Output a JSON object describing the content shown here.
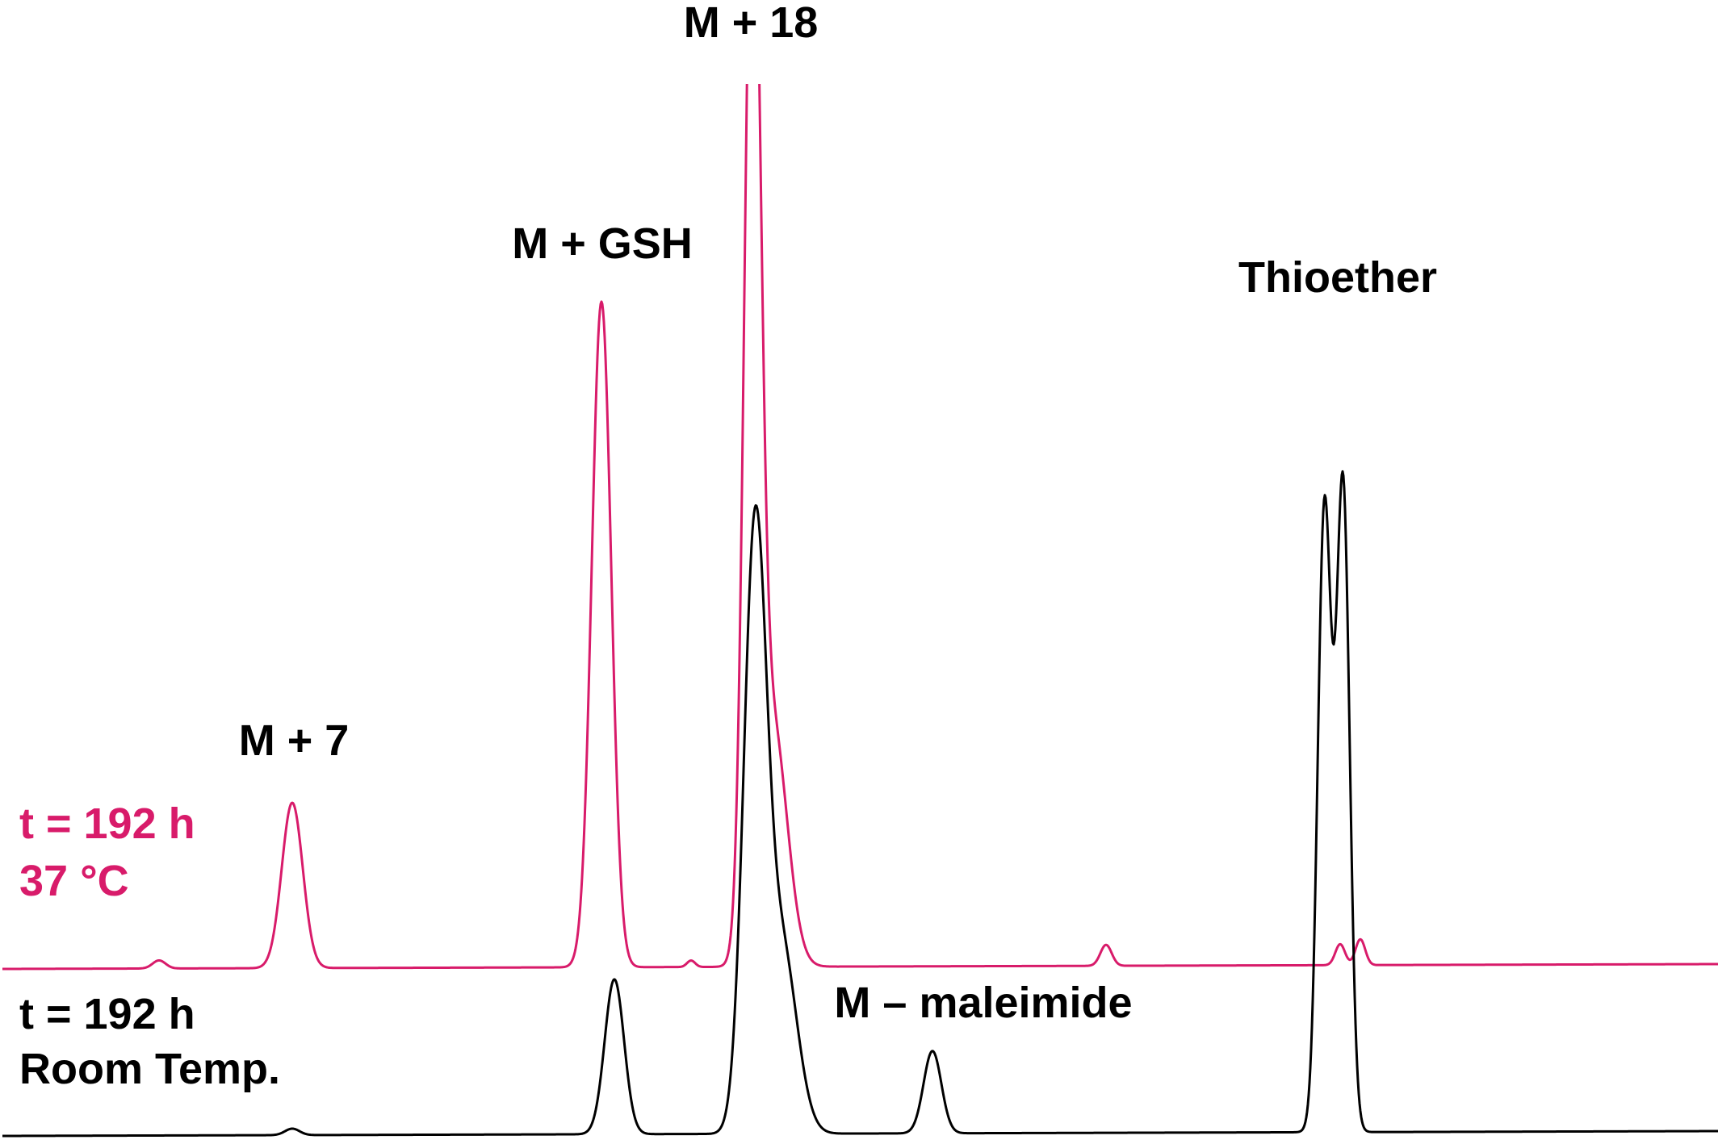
{
  "chart_data": {
    "type": "line",
    "title": "",
    "xlabel": "",
    "ylabel": "",
    "axes_shown": false,
    "grid": false,
    "xlim": [
      0,
      2128
    ],
    "colors": {
      "pink": "#d81b6a",
      "black": "#000000"
    },
    "peak_labels": [
      {
        "text": "M + 18",
        "x": 930
      },
      {
        "text": "M + GSH",
        "x": 746
      },
      {
        "text": "Thioether",
        "x": 1657
      },
      {
        "text": "M + 7",
        "x": 364
      },
      {
        "text": "M – maleimide",
        "x": 1218
      }
    ],
    "series": [
      {
        "label_lines": [
          "t = 192 h",
          "37 °C"
        ],
        "color": "#d81b6a",
        "baseline": 0,
        "x_end": 2128,
        "clipped_above": 1100,
        "peaks": [
          {
            "x": 197,
            "h": 10,
            "w": 8
          },
          {
            "x": 362,
            "h": 205,
            "w": 13
          },
          {
            "x": 745,
            "h": 825,
            "w": 12
          },
          {
            "x": 856,
            "h": 8,
            "w": 5
          },
          {
            "x": 932,
            "h": 1300,
            "w": 10
          },
          {
            "x": 957,
            "h": 300,
            "w": 18
          },
          {
            "x": 1370,
            "h": 26,
            "w": 7
          },
          {
            "x": 1660,
            "h": 26,
            "w": 6
          },
          {
            "x": 1685,
            "h": 32,
            "w": 6
          }
        ]
      },
      {
        "label_lines": [
          "t = 192 h",
          "Room Temp."
        ],
        "color": "#000000",
        "baseline": 0,
        "x_end": 2128,
        "peaks": [
          {
            "x": 362,
            "h": 8,
            "w": 9
          },
          {
            "x": 761,
            "h": 192,
            "w": 12
          },
          {
            "x": 935,
            "h": 725,
            "w": 14
          },
          {
            "x": 968,
            "h": 230,
            "w": 19
          },
          {
            "x": 1155,
            "h": 102,
            "w": 11
          },
          {
            "x": 1640,
            "h": 685,
            "w": 8
          },
          {
            "x": 1664,
            "h": 715,
            "w": 8
          },
          {
            "x": 1652,
            "h": 150,
            "w": 12
          }
        ]
      }
    ]
  }
}
